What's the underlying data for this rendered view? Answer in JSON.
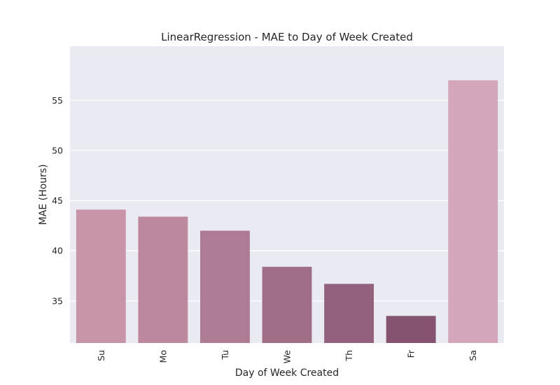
{
  "chart_data": {
    "type": "bar",
    "title": "LinearRegression - MAE to Day of Week Created",
    "xlabel": "Day of Week Created",
    "ylabel": "MAE (Hours)",
    "categories": [
      "Su",
      "Mo",
      "Tu",
      "We",
      "Th",
      "Fr",
      "Sa"
    ],
    "values": [
      44.1,
      43.4,
      42.0,
      38.4,
      36.7,
      33.5,
      57.0
    ],
    "colors": [
      "#c894a8",
      "#bc889e",
      "#ae7b95",
      "#a16e88",
      "#93617d",
      "#855370",
      "#d3a6b9"
    ],
    "ylim": [
      30.8,
      60.4
    ],
    "yticks": [
      35,
      40,
      45,
      50,
      55
    ],
    "grid": true,
    "background": "#eaeaf2"
  }
}
